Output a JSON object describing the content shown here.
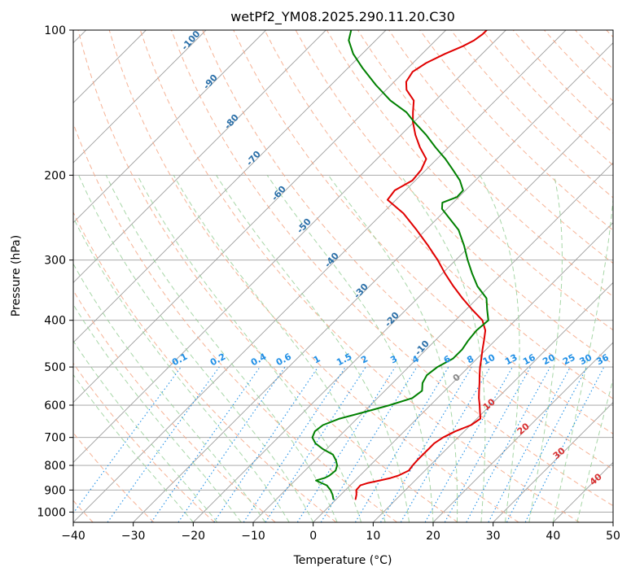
{
  "chart_data": {
    "type": "line",
    "title": "wetPf2_YM08.2025.290.11.20.C30",
    "xlabel": "Temperature (°C)",
    "ylabel": "Pressure (hPa)",
    "xlim": [
      -40,
      50
    ],
    "ylim": [
      1050,
      100
    ],
    "y_scale": "log",
    "skew": true,
    "grid": true,
    "x_ticks": [
      -40,
      -30,
      -20,
      -10,
      0,
      10,
      20,
      30,
      40,
      50
    ],
    "x_tick_labels": [
      "−40",
      "−30",
      "−20",
      "−10",
      "0",
      "10",
      "20",
      "30",
      "40",
      "50"
    ],
    "y_ticks": [
      1000,
      900,
      800,
      700,
      600,
      500,
      400,
      300,
      200,
      100
    ],
    "y_tick_labels": [
      "1000",
      "900",
      "800",
      "700",
      "600",
      "500",
      "400",
      "300",
      "200",
      "100"
    ],
    "colors": {
      "temperature": "#e00000",
      "dewpoint": "#008000",
      "isotherm": "#9e9e9e",
      "isobar": "#9e9e9e",
      "dry_adiabat": "#f4a582",
      "moist_adiabat": "#98cf98",
      "mixing_ratio": "#1f8fe6",
      "dry_label": "#2a6fa8",
      "moist_label": "#d93030"
    },
    "series": [
      {
        "key": "temperature",
        "color": "#e00000",
        "pressure": [
          940,
          920,
          900,
          880,
          870,
          860,
          850,
          840,
          820,
          800,
          780,
          760,
          740,
          720,
          700,
          680,
          660,
          640,
          620,
          600,
          580,
          560,
          540,
          520,
          500,
          480,
          460,
          440,
          420,
          400,
          380,
          360,
          340,
          320,
          300,
          280,
          260,
          240,
          225,
          215,
          205,
          195,
          185,
          175,
          165,
          155,
          148,
          140,
          133,
          128,
          122,
          117,
          112,
          108,
          105,
          102,
          100
        ],
        "temperature": [
          3.2,
          2.6,
          1.8,
          1.7,
          2.6,
          4.1,
          5.5,
          6.4,
          7.3,
          7.1,
          7.0,
          7.0,
          7.0,
          7.0,
          7.5,
          8.5,
          10.1,
          10.6,
          9.4,
          8.2,
          6.9,
          5.7,
          4.5,
          3.2,
          1.9,
          0.7,
          -0.6,
          -1.9,
          -3.3,
          -5.5,
          -9.0,
          -12.5,
          -16.0,
          -19.5,
          -23.0,
          -27.0,
          -31.5,
          -36.5,
          -41.4,
          -41.8,
          -40.5,
          -40.8,
          -41.8,
          -44.8,
          -47.6,
          -50.2,
          -51.8,
          -53.6,
          -56.6,
          -58.0,
          -58.6,
          -57.8,
          -56.2,
          -54.5,
          -53.6,
          -53.2,
          -53.2
        ]
      },
      {
        "key": "dewpoint",
        "color": "#008000",
        "pressure": [
          940,
          920,
          900,
          880,
          860,
          850,
          840,
          820,
          800,
          780,
          760,
          740,
          720,
          700,
          680,
          660,
          640,
          620,
          600,
          580,
          560,
          540,
          520,
          500,
          480,
          460,
          440,
          420,
          400,
          380,
          360,
          340,
          320,
          300,
          280,
          260,
          245,
          235,
          228,
          222,
          215,
          205,
          195,
          185,
          175,
          165,
          155,
          148,
          140,
          130,
          120,
          112,
          105,
          100
        ],
        "temperature": [
          -0.5,
          -1.4,
          -2.5,
          -3.9,
          -6.5,
          -5.5,
          -5.1,
          -4.9,
          -5.5,
          -6.6,
          -8.0,
          -10.6,
          -12.8,
          -14.3,
          -14.9,
          -14.6,
          -12.9,
          -9.8,
          -6.8,
          -4.2,
          -3.8,
          -5.0,
          -5.6,
          -5.2,
          -4.0,
          -4.0,
          -4.5,
          -4.8,
          -4.5,
          -6.5,
          -8.5,
          -12.0,
          -15.0,
          -18.0,
          -21.0,
          -24.5,
          -28.2,
          -30.8,
          -31.8,
          -30.3,
          -30.4,
          -32.6,
          -35.5,
          -38.6,
          -42.2,
          -45.8,
          -50.0,
          -52.9,
          -57.5,
          -62.5,
          -67.5,
          -71.5,
          -74.5,
          -75.8
        ]
      }
    ],
    "dry_adiabat_labels": [
      "-100",
      "-90",
      "-80",
      "-70",
      "-60",
      "-50",
      "-40",
      "-30",
      "-20",
      "-10"
    ],
    "moist_adiabat_labels": [
      "0",
      "10",
      "20",
      "30",
      "40"
    ],
    "mixing_ratio_labels": [
      "0.1",
      "0.2",
      "0.4",
      "0.6",
      "1",
      "1.5",
      "2",
      "3",
      "4",
      "6",
      "8",
      "10",
      "13",
      "16",
      "20",
      "25",
      "30",
      "36"
    ],
    "mixing_ratio_values": [
      0.1,
      0.2,
      0.4,
      0.6,
      1,
      1.5,
      2,
      3,
      4,
      6,
      8,
      10,
      13,
      16,
      20,
      25,
      30,
      36
    ]
  }
}
